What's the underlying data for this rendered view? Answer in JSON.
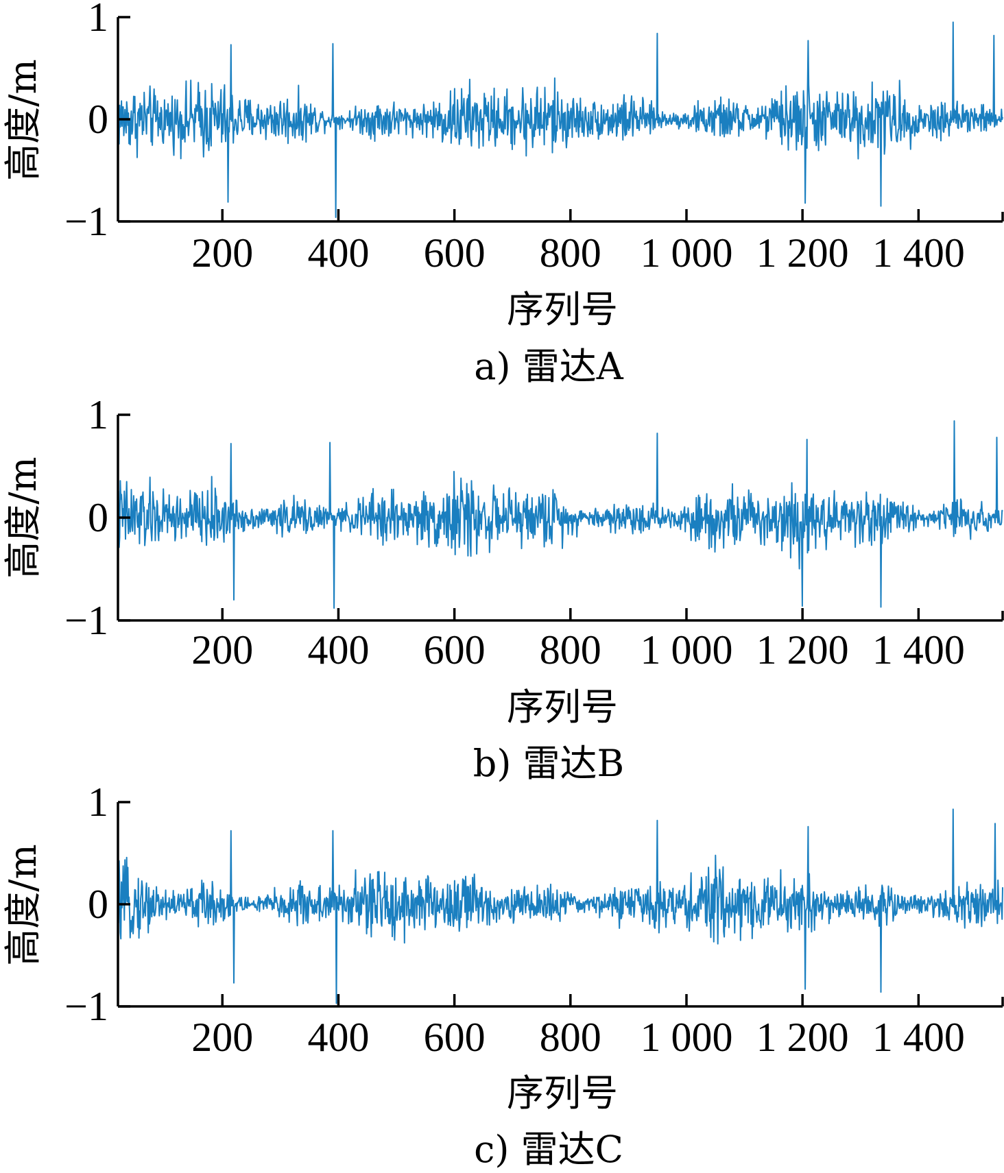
{
  "chart_data": [
    {
      "type": "line",
      "caption": "a) 雷达A",
      "xlabel": "序列号",
      "ylabel": "高度/m",
      "xlim": [
        20,
        1545
      ],
      "ylim": [
        -1,
        1
      ],
      "xticks": [
        200,
        400,
        600,
        800,
        1000,
        1200,
        1400
      ],
      "xtick_labels": [
        "200",
        "400",
        "600",
        "800",
        "1 000",
        "1 200",
        "1 400"
      ],
      "yticks": [
        -1,
        0,
        1
      ],
      "ytick_labels": [
        "−1",
        "0",
        "1"
      ],
      "series": [
        {
          "color": "#1a7fc0",
          "x_range": [
            20,
            1545
          ],
          "noise_amplitude": 0.3,
          "notable_extremes": [
            {
              "x": 210,
              "y": -0.81
            },
            {
              "x": 215,
              "y": 0.73
            },
            {
              "x": 390,
              "y": 0.74
            },
            {
              "x": 395,
              "y": -0.96
            },
            {
              "x": 950,
              "y": 0.84
            },
            {
              "x": 1205,
              "y": -0.82
            },
            {
              "x": 1210,
              "y": 0.77
            },
            {
              "x": 1335,
              "y": -0.85
            },
            {
              "x": 1460,
              "y": 0.95
            },
            {
              "x": 1530,
              "y": 0.82
            }
          ]
        }
      ]
    },
    {
      "type": "line",
      "caption": "b) 雷达B",
      "xlabel": "序列号",
      "ylabel": "高度/m",
      "xlim": [
        20,
        1545
      ],
      "ylim": [
        -1,
        1
      ],
      "xticks": [
        200,
        400,
        600,
        800,
        1000,
        1200,
        1400
      ],
      "xtick_labels": [
        "200",
        "400",
        "600",
        "800",
        "1 000",
        "1 200",
        "1 400"
      ],
      "yticks": [
        -1,
        0,
        1
      ],
      "ytick_labels": [
        "−1",
        "0",
        "1"
      ],
      "series": [
        {
          "color": "#1a7fc0",
          "x_range": [
            20,
            1545
          ],
          "noise_amplitude": 0.3,
          "notable_extremes": [
            {
              "x": 215,
              "y": 0.72
            },
            {
              "x": 220,
              "y": -0.8
            },
            {
              "x": 385,
              "y": 0.73
            },
            {
              "x": 392,
              "y": -0.88
            },
            {
              "x": 950,
              "y": 0.82
            },
            {
              "x": 1200,
              "y": -0.86
            },
            {
              "x": 1208,
              "y": 0.76
            },
            {
              "x": 1335,
              "y": -0.87
            },
            {
              "x": 1462,
              "y": 0.94
            },
            {
              "x": 1535,
              "y": 0.78
            }
          ]
        }
      ]
    },
    {
      "type": "line",
      "caption": "c) 雷达C",
      "xlabel": "序列号",
      "ylabel": "高度/m",
      "xlim": [
        20,
        1545
      ],
      "ylim": [
        -1,
        1
      ],
      "xticks": [
        200,
        400,
        600,
        800,
        1000,
        1200,
        1400
      ],
      "xtick_labels": [
        "200",
        "400",
        "600",
        "800",
        "1 000",
        "1 200",
        "1 400"
      ],
      "yticks": [
        -1,
        0,
        1
      ],
      "ytick_labels": [
        "−1",
        "0",
        "1"
      ],
      "series": [
        {
          "color": "#1a7fc0",
          "x_range": [
            20,
            1545
          ],
          "noise_amplitude": 0.3,
          "notable_extremes": [
            {
              "x": 215,
              "y": 0.72
            },
            {
              "x": 220,
              "y": -0.77
            },
            {
              "x": 390,
              "y": 0.72
            },
            {
              "x": 396,
              "y": -0.97
            },
            {
              "x": 950,
              "y": 0.82
            },
            {
              "x": 1205,
              "y": -0.83
            },
            {
              "x": 1210,
              "y": 0.76
            },
            {
              "x": 1335,
              "y": -0.86
            },
            {
              "x": 1460,
              "y": 0.93
            },
            {
              "x": 1532,
              "y": 0.79
            }
          ]
        }
      ]
    }
  ]
}
